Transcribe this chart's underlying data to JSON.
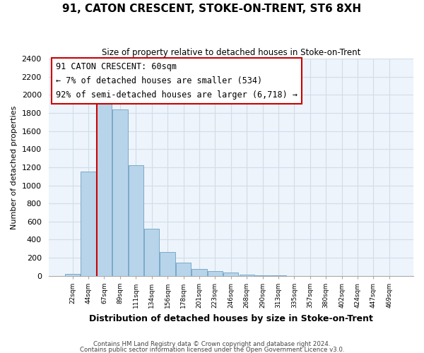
{
  "title": "91, CATON CRESCENT, STOKE-ON-TRENT, ST6 8XH",
  "subtitle": "Size of property relative to detached houses in Stoke-on-Trent",
  "xlabel": "Distribution of detached houses by size in Stoke-on-Trent",
  "ylabel": "Number of detached properties",
  "bin_labels": [
    "22sqm",
    "44sqm",
    "67sqm",
    "89sqm",
    "111sqm",
    "134sqm",
    "156sqm",
    "178sqm",
    "201sqm",
    "223sqm",
    "246sqm",
    "268sqm",
    "290sqm",
    "313sqm",
    "335sqm",
    "357sqm",
    "380sqm",
    "402sqm",
    "424sqm",
    "447sqm",
    "469sqm"
  ],
  "bar_heights": [
    25,
    1155,
    1950,
    1840,
    1225,
    520,
    265,
    148,
    80,
    50,
    40,
    10,
    5,
    3,
    2,
    2,
    1,
    1,
    1,
    0,
    0
  ],
  "bar_color": "#b8d4ea",
  "bar_edge_color": "#7aaac8",
  "highlight_line_color": "#cc0000",
  "annotation_title": "91 CATON CRESCENT: 60sqm",
  "annotation_line1": "← 7% of detached houses are smaller (534)",
  "annotation_line2": "92% of semi-detached houses are larger (6,718) →",
  "annotation_box_color": "#ffffff",
  "annotation_box_edge": "#cc0000",
  "ylim": [
    0,
    2400
  ],
  "yticks": [
    0,
    200,
    400,
    600,
    800,
    1000,
    1200,
    1400,
    1600,
    1800,
    2000,
    2200,
    2400
  ],
  "grid_color": "#d0dde8",
  "footer1": "Contains HM Land Registry data © Crown copyright and database right 2024.",
  "footer2": "Contains public sector information licensed under the Open Government Licence v3.0."
}
